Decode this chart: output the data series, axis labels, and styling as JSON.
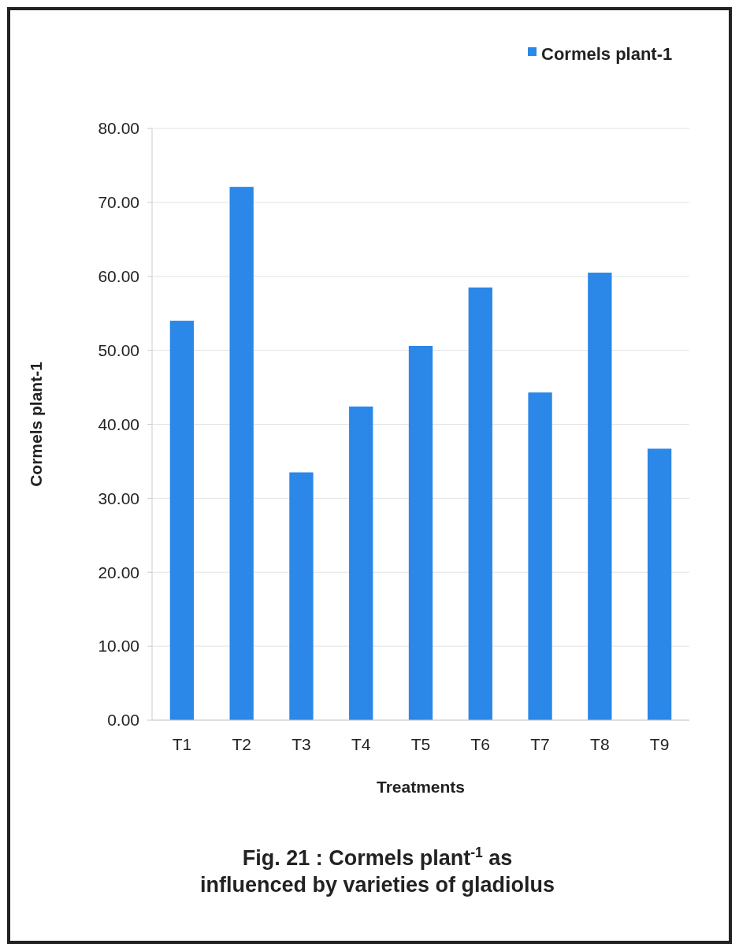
{
  "chart_data": {
    "type": "bar",
    "title": "Fig. 21 : Cormels plant$^{-1}$ as influenced by varieties of gladiolus",
    "xlabel": "Treatments",
    "ylabel": "Cormels plant-1",
    "categories": [
      "T1",
      "T2",
      "T3",
      "T4",
      "T5",
      "T6",
      "T7",
      "T8",
      "T9"
    ],
    "series": [
      {
        "name": "Cormels plant-1",
        "color": "#2b87e8",
        "values": [
          54.0,
          72.1,
          33.5,
          42.4,
          50.6,
          58.5,
          44.3,
          60.5,
          36.7
        ]
      }
    ],
    "ylim": [
      0,
      80
    ],
    "yticks": [
      {
        "value": 0,
        "label": "0.00"
      },
      {
        "value": 10,
        "label": "10.00"
      },
      {
        "value": 20,
        "label": "20.00"
      },
      {
        "value": 30,
        "label": "30.00"
      },
      {
        "value": 40,
        "label": "40.00"
      },
      {
        "value": 50,
        "label": "50.00"
      },
      {
        "value": 60,
        "label": "60.00"
      },
      {
        "value": 70,
        "label": "70.00"
      },
      {
        "value": 80,
        "label": "80.00"
      }
    ],
    "grid": "y",
    "legend": "top right"
  }
}
